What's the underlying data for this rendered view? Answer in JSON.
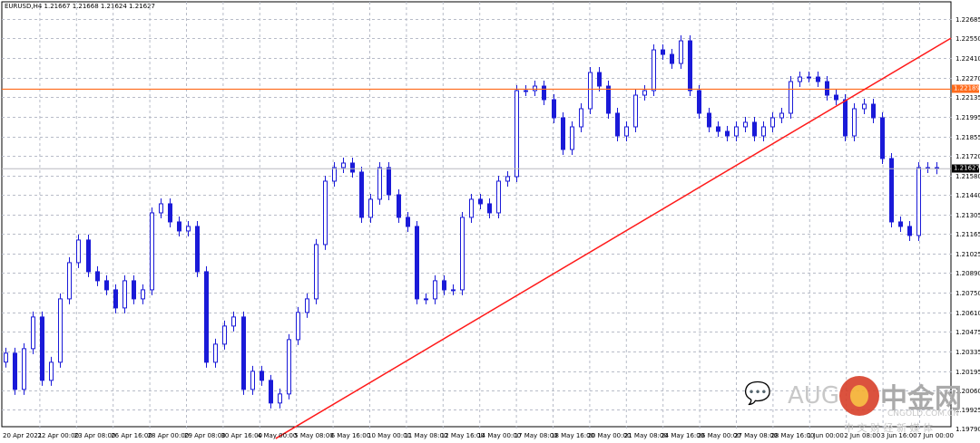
{
  "header": {
    "title": "EURUSD,H4  1.21667 1.21668 1.21624 1.21627"
  },
  "colors": {
    "candle": "#1a1ad8",
    "grid": "#c0c0c8",
    "hline": "#ff6a1a",
    "trendline": "#ff1a1a",
    "current_bg": "#000000"
  },
  "chart_data": {
    "type": "candlestick",
    "symbol": "EURUSD",
    "timeframe": "H4",
    "ohlc_last": {
      "open": "1.21667",
      "high": "1.21668",
      "low": "1.21624",
      "close": "1.21627"
    },
    "y_ticks": [
      "1.22685",
      "1.22550",
      "1.22410",
      "1.22270",
      "1.22135",
      "1.21995",
      "1.21855",
      "1.21720",
      "1.21580",
      "1.21440",
      "1.21305",
      "1.21165",
      "1.21025",
      "1.20890",
      "1.20750",
      "1.20610",
      "1.20475",
      "1.20335",
      "1.20195",
      "1.20060",
      "1.19925",
      "1.19790"
    ],
    "ylim": [
      1.1979,
      1.2276
    ],
    "x_ticks": [
      "20 Apr 2021",
      "22 Apr 00:00",
      "23 Apr 08:00",
      "26 Apr 16:00",
      "28 Apr 00:00",
      "29 Apr 08:00",
      "30 Apr 16:00",
      "4 May 00:00",
      "5 May 08:00",
      "6 May 16:00",
      "10 May 00:00",
      "11 May 08:00",
      "12 May 16:00",
      "14 May 00:00",
      "17 May 08:00",
      "18 May 16:00",
      "20 May 00:00",
      "21 May 08:00",
      "24 May 16:00",
      "26 May 00:00",
      "27 May 08:00",
      "28 May 16:00",
      "1 Jun 00:00",
      "2 Jun 08:00",
      "3 Jun 16:00",
      "7 Jun 00:00"
    ],
    "closes": [
      1.20323,
      1.20067,
      1.20355,
      1.20579,
      1.20131,
      1.20259,
      1.20707,
      1.20963,
      1.21123,
      1.20899,
      1.20835,
      1.20771,
      1.20643,
      1.20835,
      1.20707,
      1.20771,
      1.21315,
      1.21379,
      1.21251,
      1.21187,
      1.21219,
      1.20899,
      1.20259,
      1.20387,
      1.20515,
      1.20579,
      1.20067,
      1.20195,
      1.20131,
      1.19971,
      1.20035,
      1.20419,
      1.20611,
      1.20707,
      1.21091,
      1.21539,
      1.21635,
      1.21667,
      1.21603,
      1.21283,
      1.21411,
      1.21635,
      1.21443,
      1.21283,
      1.21219,
      1.20707,
      1.20707,
      1.20835,
      1.20771,
      1.20771,
      1.21283,
      1.21411,
      1.21379,
      1.21315,
      1.21539,
      1.21571,
      1.22179,
      1.22179,
      1.22211,
      1.22115,
      1.21987,
      1.21763,
      1.21923,
      1.22051,
      1.22307,
      1.22211,
      1.22019,
      1.21859,
      1.21923,
      1.22147,
      1.22179,
      1.22467,
      1.22435,
      1.22371,
      1.22531,
      1.22179,
      1.22019,
      1.21923,
      1.21891,
      1.21859,
      1.21923,
      1.21955,
      1.21859,
      1.21923,
      1.21987,
      1.22019,
      1.22243,
      1.22275,
      1.22275,
      1.22243,
      1.22147,
      1.22115,
      1.21859,
      1.22051,
      1.22083,
      1.21987,
      1.21699,
      1.21251,
      1.21219,
      1.21155,
      1.21635,
      1.21635,
      1.21627
    ],
    "first_open": 1.2026,
    "horizontal_line": {
      "price": 1.22189,
      "label": "1.22189"
    },
    "current_price": {
      "price": 1.21627,
      "label": "1.21627"
    },
    "trendline": {
      "from": {
        "date": "4 May 00:00",
        "price": 1.1972
      },
      "to": {
        "date": "7 Jun 00:00",
        "price": 1.2255
      }
    }
  },
  "watermark": {
    "wechat": "AUG",
    "brand": "中金网",
    "domain": "CNGOLD.COM.CN",
    "slogan": "中 文 财 经 新 媒 体"
  }
}
